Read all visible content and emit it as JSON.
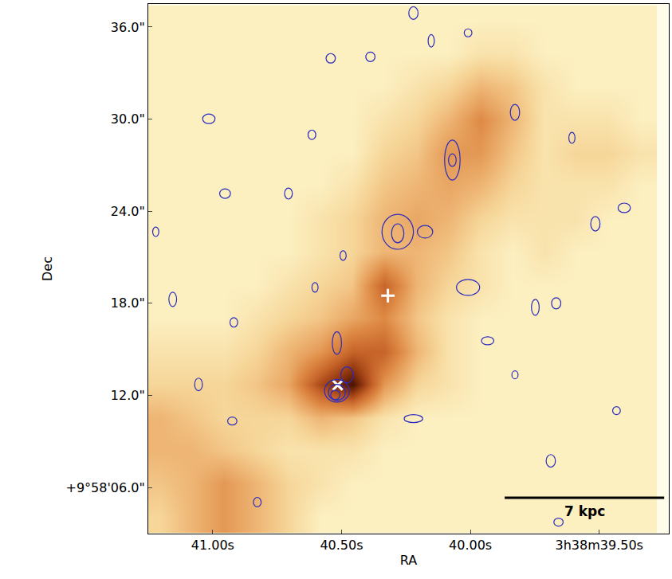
{
  "chart_data": {
    "type": "heatmap",
    "xlabel": "RA",
    "ylabel": "Dec",
    "xlim": [
      41.25,
      39.23
    ],
    "ylim": [
      3.0,
      37.5
    ],
    "xticks": [
      {
        "value": 41.0,
        "label": "41.00s"
      },
      {
        "value": 40.5,
        "label": "40.50s"
      },
      {
        "value": 40.0,
        "label": "40.00s"
      },
      {
        "value": 39.5,
        "label": "3h38m39.50s"
      }
    ],
    "yticks": [
      {
        "value": 6,
        "label": "+9°58'06.0\""
      },
      {
        "value": 12,
        "label": "12.0\""
      },
      {
        "value": 18,
        "label": "18.0\""
      },
      {
        "value": 24,
        "label": "24.0\""
      },
      {
        "value": 30,
        "label": "30.0\""
      },
      {
        "value": 36,
        "label": "36.0\""
      }
    ],
    "grid": false,
    "x": [
      41.203,
      41.079,
      40.955,
      40.83,
      40.706,
      40.582,
      40.458,
      40.333,
      40.209,
      40.085,
      39.961,
      39.836,
      39.712,
      39.588,
      39.464,
      39.339
    ],
    "y": [
      4.11,
      6.24,
      8.41,
      10.54,
      12.72,
      14.84,
      17.02,
      19.14,
      21.32,
      23.44,
      25.62,
      27.74,
      29.92,
      32.04,
      34.22,
      36.34
    ],
    "z": [
      [
        2,
        3,
        4,
        3,
        2,
        1,
        1,
        1,
        1,
        1,
        1,
        1,
        1,
        1,
        1,
        1
      ],
      [
        2.5,
        3,
        4,
        3,
        2,
        1.5,
        1,
        1,
        1,
        1,
        1,
        1,
        1,
        1,
        1,
        1
      ],
      [
        3,
        3,
        2.5,
        2,
        1.5,
        1.5,
        1.5,
        1,
        1,
        1,
        1,
        1,
        1,
        1,
        1,
        1
      ],
      [
        3,
        2.5,
        2,
        2,
        2,
        3,
        2.5,
        1.5,
        1,
        1,
        1,
        1,
        1,
        1,
        1,
        1
      ],
      [
        2,
        2,
        2,
        2.5,
        3.5,
        7,
        9.5,
        4,
        2,
        1.5,
        1,
        1,
        1,
        1,
        1,
        1
      ],
      [
        1.5,
        1.5,
        1.5,
        2,
        3,
        4,
        6,
        6,
        3,
        1.5,
        1,
        1,
        1,
        1,
        1,
        1
      ],
      [
        1,
        1,
        1,
        1.5,
        2,
        2.5,
        3.5,
        4.5,
        2.5,
        1.5,
        1,
        1,
        1,
        1,
        1,
        1
      ],
      [
        1,
        1,
        1,
        1,
        1.5,
        2,
        2.5,
        6,
        3,
        2,
        1.5,
        1,
        1,
        1,
        1,
        1
      ],
      [
        1,
        1,
        1,
        1,
        1,
        1.5,
        2,
        3,
        3,
        2.5,
        1.5,
        1,
        1.5,
        1,
        1,
        1
      ],
      [
        1,
        1,
        1,
        1,
        1,
        1.5,
        2,
        3,
        3.5,
        3,
        2,
        1.5,
        1.5,
        1.5,
        1,
        1
      ],
      [
        1,
        1,
        1,
        1,
        1,
        1,
        1.5,
        2.5,
        3,
        3.5,
        3,
        2,
        1.5,
        1.5,
        1.5,
        1
      ],
      [
        1,
        1,
        1,
        1,
        1,
        1,
        1,
        2,
        2.5,
        4,
        4,
        2.5,
        1.5,
        2,
        2,
        1.5
      ],
      [
        1,
        1,
        1,
        1,
        1,
        1,
        1,
        1.5,
        2,
        3,
        4.5,
        3,
        1.5,
        1.5,
        1.5,
        1
      ],
      [
        1,
        1,
        1,
        1,
        1,
        1,
        1,
        1,
        1.5,
        2,
        3,
        2.5,
        1.5,
        1,
        1,
        1
      ],
      [
        1,
        1,
        1,
        1,
        1,
        1,
        1,
        1,
        1,
        1,
        1.5,
        1.5,
        1,
        1,
        1,
        1
      ],
      [
        1,
        1,
        1,
        1,
        1,
        1,
        1,
        1,
        1,
        1,
        1,
        1,
        1,
        1,
        1,
        1
      ]
    ],
    "zlim": [
      0,
      10
    ],
    "contours": [
      {
        "ra": 40.518,
        "dec": 12.3,
        "dra": 0.048,
        "ddec": 0.73
      },
      {
        "ra": 40.518,
        "dec": 12.2,
        "dra": 0.033,
        "ddec": 0.52
      },
      {
        "ra": 40.524,
        "dec": 12.04,
        "dra": 0.018,
        "ddec": 0.31
      },
      {
        "ra": 40.479,
        "dec": 13.34,
        "dra": 0.024,
        "ddec": 0.52
      },
      {
        "ra": 40.518,
        "dec": 15.41,
        "dra": 0.018,
        "ddec": 0.73
      },
      {
        "ra": 40.282,
        "dec": 22.66,
        "dra": 0.061,
        "ddec": 1.14
      },
      {
        "ra": 40.282,
        "dec": 22.56,
        "dra": 0.024,
        "ddec": 0.62
      },
      {
        "ra": 40.07,
        "dec": 27.33,
        "dra": 0.03,
        "ddec": 1.3
      },
      {
        "ra": 40.07,
        "dec": 27.33,
        "dra": 0.015,
        "ddec": 0.41
      },
      {
        "ra": 39.827,
        "dec": 30.44,
        "dra": 0.018,
        "ddec": 0.52
      },
      {
        "ra": 40.176,
        "dec": 22.66,
        "dra": 0.03,
        "ddec": 0.41
      },
      {
        "ra": 40.009,
        "dec": 19.04,
        "dra": 0.045,
        "ddec": 0.52
      },
      {
        "ra": 40.221,
        "dec": 10.49,
        "dra": 0.036,
        "ddec": 0.26
      },
      {
        "ra": 39.515,
        "dec": 23.18,
        "dra": 0.018,
        "ddec": 0.47
      },
      {
        "ra": 39.748,
        "dec": 17.74,
        "dra": 0.015,
        "ddec": 0.52
      },
      {
        "ra": 39.667,
        "dec": 18.0,
        "dra": 0.018,
        "ddec": 0.36
      },
      {
        "ra": 39.688,
        "dec": 7.74,
        "dra": 0.018,
        "ddec": 0.41
      },
      {
        "ra": 39.606,
        "dec": 28.78,
        "dra": 0.012,
        "ddec": 0.36
      },
      {
        "ra": 40.221,
        "dec": 36.91,
        "dra": 0.018,
        "ddec": 0.41
      },
      {
        "ra": 40.009,
        "dec": 35.62,
        "dra": 0.015,
        "ddec": 0.26
      },
      {
        "ra": 40.388,
        "dec": 34.06,
        "dra": 0.018,
        "ddec": 0.31
      },
      {
        "ra": 40.542,
        "dec": 33.96,
        "dra": 0.018,
        "ddec": 0.31
      },
      {
        "ra": 41.055,
        "dec": 12.72,
        "dra": 0.015,
        "ddec": 0.41
      },
      {
        "ra": 41.155,
        "dec": 18.26,
        "dra": 0.015,
        "ddec": 0.47
      },
      {
        "ra": 41.015,
        "dec": 30.02,
        "dra": 0.024,
        "ddec": 0.31
      },
      {
        "ra": 40.952,
        "dec": 25.15,
        "dra": 0.021,
        "ddec": 0.31
      },
      {
        "ra": 40.918,
        "dec": 16.76,
        "dra": 0.015,
        "ddec": 0.31
      },
      {
        "ra": 39.933,
        "dec": 15.56,
        "dra": 0.024,
        "ddec": 0.26
      },
      {
        "ra": 40.152,
        "dec": 35.1,
        "dra": 0.012,
        "ddec": 0.41
      },
      {
        "ra": 40.615,
        "dec": 28.98,
        "dra": 0.015,
        "ddec": 0.31
      },
      {
        "ra": 40.706,
        "dec": 25.15,
        "dra": 0.015,
        "ddec": 0.36
      },
      {
        "ra": 39.433,
        "dec": 11.01,
        "dra": 0.015,
        "ddec": 0.26
      },
      {
        "ra": 39.403,
        "dec": 24.22,
        "dra": 0.024,
        "ddec": 0.31
      },
      {
        "ra": 40.494,
        "dec": 21.11,
        "dra": 0.012,
        "ddec": 0.31
      },
      {
        "ra": 40.603,
        "dec": 19.04,
        "dra": 0.012,
        "ddec": 0.31
      },
      {
        "ra": 40.924,
        "dec": 10.33,
        "dra": 0.018,
        "ddec": 0.26
      },
      {
        "ra": 39.827,
        "dec": 13.34,
        "dra": 0.012,
        "ddec": 0.26
      },
      {
        "ra": 39.658,
        "dec": 3.75,
        "dra": 0.018,
        "ddec": 0.26
      },
      {
        "ra": 40.827,
        "dec": 5.05,
        "dra": 0.015,
        "ddec": 0.31
      },
      {
        "ra": 41.221,
        "dec": 22.66,
        "dra": 0.012,
        "ddec": 0.31
      }
    ],
    "markers": [
      {
        "ra": 40.32,
        "dec": 18.5,
        "marker": "cross"
      },
      {
        "ra": 40.515,
        "dec": 12.67,
        "marker": "x"
      }
    ],
    "scale_bar": {
      "label": "7 kpc",
      "x": [
        39.867,
        39.248
      ],
      "y": 5.33,
      "label_y": 4.45
    }
  }
}
